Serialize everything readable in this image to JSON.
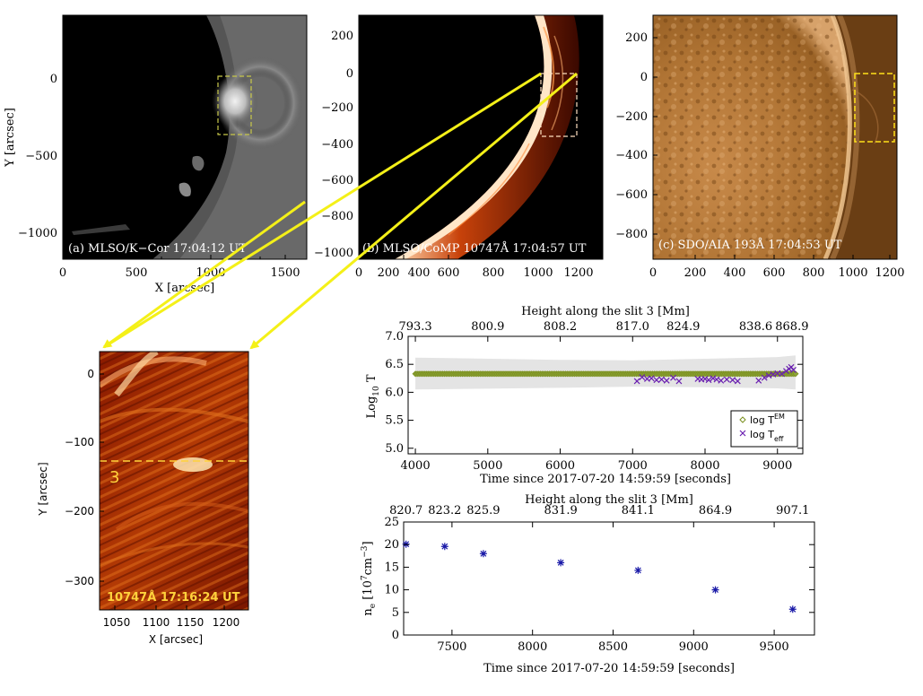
{
  "panels": {
    "a": {
      "label": "(a) MLSO/K−Cor 17:04:12 UT",
      "xlabel": "X [arcsec]",
      "ylabel": "Y [arcsec]",
      "xticks": [
        "0",
        "500",
        "1000",
        "1500"
      ],
      "yticks": [
        "0",
        "−500",
        "−1000"
      ]
    },
    "b": {
      "label": "(b) MLSO/CoMP 10747Å 17:04:57 UT",
      "xticks": [
        "0",
        "200",
        "400",
        "600",
        "800",
        "1000",
        "1200"
      ],
      "yticks": [
        "200",
        "0",
        "−200",
        "−400",
        "−600",
        "−800",
        "−1000"
      ]
    },
    "c": {
      "label": "(c) SDO/AIA 193Å 17:04:53 UT",
      "xticks": [
        "0",
        "200",
        "400",
        "600",
        "800",
        "1000",
        "1200"
      ],
      "yticks": [
        "200",
        "0",
        "−200",
        "−400",
        "−600",
        "−800"
      ]
    },
    "zoom": {
      "label": "10747Å 17:16:24 UT",
      "slit_label": "3",
      "xlabel": "X [arcsec]",
      "ylabel": "Y [arcsec]",
      "xticks": [
        "1050",
        "1100",
        "1150",
        "1200"
      ],
      "yticks": [
        "0",
        "−100",
        "−200",
        "−300"
      ]
    }
  },
  "chart_data": [
    {
      "type": "scatter",
      "title": "Height along the slit 3 [Mm]",
      "top_ticks": [
        "793.3",
        "800.9",
        "808.2",
        "817.0",
        "824.9",
        "838.6",
        "868.9"
      ],
      "xlabel": "Time since 2017-07-20 14:59:59 [seconds]",
      "ylabel": "Log10 T",
      "xlim": [
        3900,
        9350
      ],
      "ylim": [
        4.9,
        7.0
      ],
      "xticks": [
        4000,
        5000,
        6000,
        7000,
        8000,
        9000
      ],
      "yticks": [
        5.0,
        5.5,
        6.0,
        6.5,
        7.0
      ],
      "legend_position": "bottom-right",
      "uncertainty_band": {
        "x": [
          4000,
          6000,
          7000,
          8000,
          9000,
          9250
        ],
        "upper": [
          6.62,
          6.58,
          6.57,
          6.6,
          6.63,
          6.66
        ],
        "lower": [
          6.05,
          6.08,
          6.1,
          6.09,
          6.07,
          6.05
        ]
      },
      "series": [
        {
          "name": "log T_EM",
          "marker": "diamond",
          "color": "#7a8f1e",
          "x_start": 4000,
          "x_end": 9250,
          "step": 25,
          "y_value": 6.33
        },
        {
          "name": "log T_eff",
          "marker": "x",
          "color": "#6a1fb0",
          "x": [
            7060,
            7130,
            7200,
            7260,
            7330,
            7400,
            7470,
            7560,
            7640,
            7900,
            7950,
            8000,
            8050,
            8110,
            8160,
            8220,
            8300,
            8380,
            8450,
            8740,
            8820,
            8880,
            8940,
            9000,
            9060,
            9120,
            9160,
            9190,
            9220
          ],
          "y": [
            6.2,
            6.27,
            6.24,
            6.25,
            6.22,
            6.23,
            6.21,
            6.26,
            6.2,
            6.24,
            6.23,
            6.24,
            6.22,
            6.25,
            6.23,
            6.21,
            6.23,
            6.22,
            6.2,
            6.21,
            6.26,
            6.3,
            6.32,
            6.34,
            6.33,
            6.38,
            6.42,
            6.45,
            6.4
          ]
        }
      ]
    },
    {
      "type": "scatter",
      "title": "Height along the slit 3 [Mm]",
      "top_ticks": [
        "820.7",
        "823.2",
        "825.9",
        "831.9",
        "841.1",
        "864.9",
        "907.1"
      ],
      "top_tick_x": [
        7215,
        7455,
        7695,
        8175,
        8655,
        9135,
        9615
      ],
      "xlabel": "Time since 2017-07-20 14:59:59 [seconds]",
      "ylabel": "n_e [10^7 cm^-3]",
      "xlim": [
        7200,
        9750
      ],
      "ylim": [
        0,
        25
      ],
      "xticks": [
        7500,
        8000,
        8500,
        9000,
        9500
      ],
      "yticks": [
        0,
        5,
        10,
        15,
        20,
        25
      ],
      "series": [
        {
          "name": "n_e",
          "marker": "asterisk",
          "color": "#1a1aa8",
          "x": [
            7215,
            7455,
            7695,
            8175,
            8655,
            9135,
            9615
          ],
          "y": [
            20.1,
            19.6,
            18.0,
            16.0,
            14.3,
            10.0,
            5.7
          ]
        }
      ]
    }
  ],
  "top_plot": {
    "ylabel_main": "Log",
    "ylabel_sub": "10",
    "ylabel_tail": " T",
    "legend": {
      "em_main": "log T",
      "em_sup": "EM",
      "eff_main": "log T",
      "eff_sub": "eff"
    }
  },
  "bottom_plot": {
    "ylabel_main": "n",
    "ylabel_sub": "e",
    "ylabel_open": " [10",
    "ylabel_sup7": "7",
    "ylabel_mid": "cm",
    "ylabel_sup3": "−3",
    "ylabel_close": "]"
  },
  "colors": {
    "arrow": "#f4f018",
    "box_a": "#c8c84a",
    "box_b": "#ffe0c0",
    "box_c": "#ffe11a",
    "band": "#e4e4e4"
  }
}
